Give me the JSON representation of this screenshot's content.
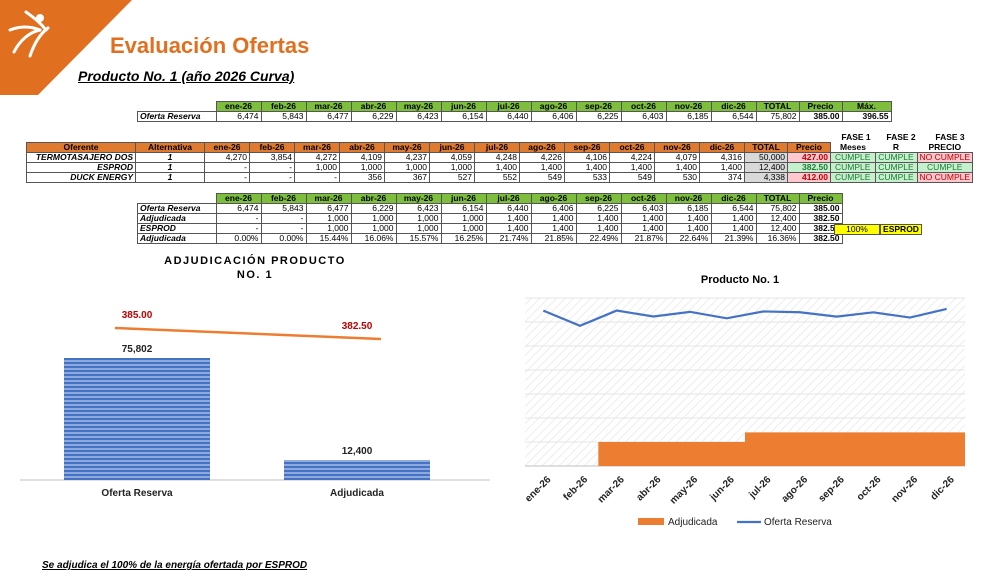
{
  "header": {
    "title": "Evaluación Ofertas",
    "subtitle": "Producto No. 1 (año 2026 Curva)"
  },
  "colors": {
    "accent": "#E07020",
    "header_green": "#7DBF3C",
    "header_orange": "#E07A2E",
    "series_blue": "#4472C4",
    "series_orange": "#ED7D31"
  },
  "months": [
    "ene-26",
    "feb-26",
    "mar-26",
    "abr-26",
    "may-26",
    "jun-26",
    "jul-26",
    "ago-26",
    "sep-26",
    "oct-26",
    "nov-26",
    "dic-26"
  ],
  "table1": {
    "col_total": "TOTAL",
    "col_precio": "Precio",
    "col_max": "Máx.",
    "row": {
      "label": "Oferta Reserva",
      "values": [
        "6,474",
        "5,843",
        "6,477",
        "6,229",
        "6,423",
        "6,154",
        "6,440",
        "6,406",
        "6,225",
        "6,403",
        "6,185",
        "6,544"
      ],
      "total": "75,802",
      "precio": "385.00",
      "max": "396.55"
    }
  },
  "table2": {
    "col_oferente": "Oferente",
    "col_alternativa": "Alternativa",
    "col_total": "TOTAL",
    "col_precio": "Precio",
    "phase_headers": [
      "FASE 1",
      "FASE 2",
      "FASE 3"
    ],
    "phase_sub": [
      "Meses",
      "R",
      "PRECIO"
    ],
    "rows": [
      {
        "oferente": "TERMOTASAJERO DOS",
        "alt": "1",
        "values": [
          "4,270",
          "3,854",
          "4,272",
          "4,109",
          "4,237",
          "4,059",
          "4,248",
          "4,226",
          "4,106",
          "4,224",
          "4,079",
          "4,316"
        ],
        "total": "50,000",
        "precio": "427.00",
        "f1": "CUMPLE",
        "f2": "CUMPLE",
        "f3": "NO CUMPLE"
      },
      {
        "oferente": "ESPROD",
        "alt": "1",
        "values": [
          "-",
          "-",
          "1,000",
          "1,000",
          "1,000",
          "1,000",
          "1,400",
          "1,400",
          "1,400",
          "1,400",
          "1,400",
          "1,400"
        ],
        "total": "12,400",
        "precio": "382.50",
        "f1": "CUMPLE",
        "f2": "CUMPLE",
        "f3": "CUMPLE"
      },
      {
        "oferente": "DUCK ENERGY",
        "alt": "1",
        "values": [
          "-",
          "-",
          "-",
          "356",
          "367",
          "527",
          "552",
          "549",
          "533",
          "549",
          "530",
          "374"
        ],
        "total": "4,338",
        "precio": "412.00",
        "f1": "CUMPLE",
        "f2": "CUMPLE",
        "f3": "NO CUMPLE"
      }
    ]
  },
  "table3": {
    "col_total": "TOTAL",
    "col_precio": "Precio",
    "rows": [
      {
        "label": "Oferta Reserva",
        "values": [
          "6,474",
          "5,843",
          "6,477",
          "6,229",
          "6,423",
          "6,154",
          "6,440",
          "6,406",
          "6,225",
          "6,403",
          "6,185",
          "6,544"
        ],
        "total": "75,802",
        "precio": "385.00"
      },
      {
        "label": "Adjudicada",
        "values": [
          "-",
          "-",
          "1,000",
          "1,000",
          "1,000",
          "1,000",
          "1,400",
          "1,400",
          "1,400",
          "1,400",
          "1,400",
          "1,400"
        ],
        "total": "12,400",
        "precio": "382.50"
      },
      {
        "label": "ESPROD",
        "values": [
          "-",
          "-",
          "1,000",
          "1,000",
          "1,000",
          "1,000",
          "1,400",
          "1,400",
          "1,400",
          "1,400",
          "1,400",
          "1,400"
        ],
        "total": "12,400",
        "precio": "382.50",
        "pct": "100%",
        "winner": "ESPROD"
      },
      {
        "label": "Adjudicada",
        "values": [
          "0.00%",
          "0.00%",
          "15.44%",
          "16.06%",
          "15.57%",
          "16.25%",
          "21.74%",
          "21.85%",
          "22.49%",
          "21.87%",
          "22.64%",
          "21.39%"
        ],
        "total": "16.36%",
        "precio": "382.50"
      }
    ]
  },
  "chart_data": [
    {
      "type": "bar",
      "title": "ADJUDICACIÓN PRODUCTO NO. 1",
      "categories": [
        "Oferta Reserva",
        "Adjudicada"
      ],
      "values": [
        75802,
        12400
      ],
      "value_labels": [
        "75,802",
        "12,400"
      ],
      "line": {
        "values": [
          385.0,
          382.5
        ],
        "labels": [
          "385.00",
          "382.50"
        ]
      }
    },
    {
      "type": "line",
      "title": "Producto No. 1",
      "x": [
        "ene-26",
        "feb-26",
        "mar-26",
        "abr-26",
        "may-26",
        "jun-26",
        "jul-26",
        "ago-26",
        "sep-26",
        "oct-26",
        "nov-26",
        "dic-26"
      ],
      "series": [
        {
          "name": "Adjudicada",
          "kind": "area",
          "values": [
            0,
            0,
            1000,
            1000,
            1000,
            1000,
            1400,
            1400,
            1400,
            1400,
            1400,
            1400
          ]
        },
        {
          "name": "Oferta Reserva",
          "kind": "line",
          "values": [
            6474,
            5843,
            6477,
            6229,
            6423,
            6154,
            6440,
            6406,
            6225,
            6403,
            6185,
            6544
          ]
        }
      ],
      "ylim": [
        0,
        7000
      ],
      "legend": "bottom"
    }
  ],
  "footer": {
    "note": "Se adjudica el 100% de la energía ofertada por ESPROD"
  }
}
